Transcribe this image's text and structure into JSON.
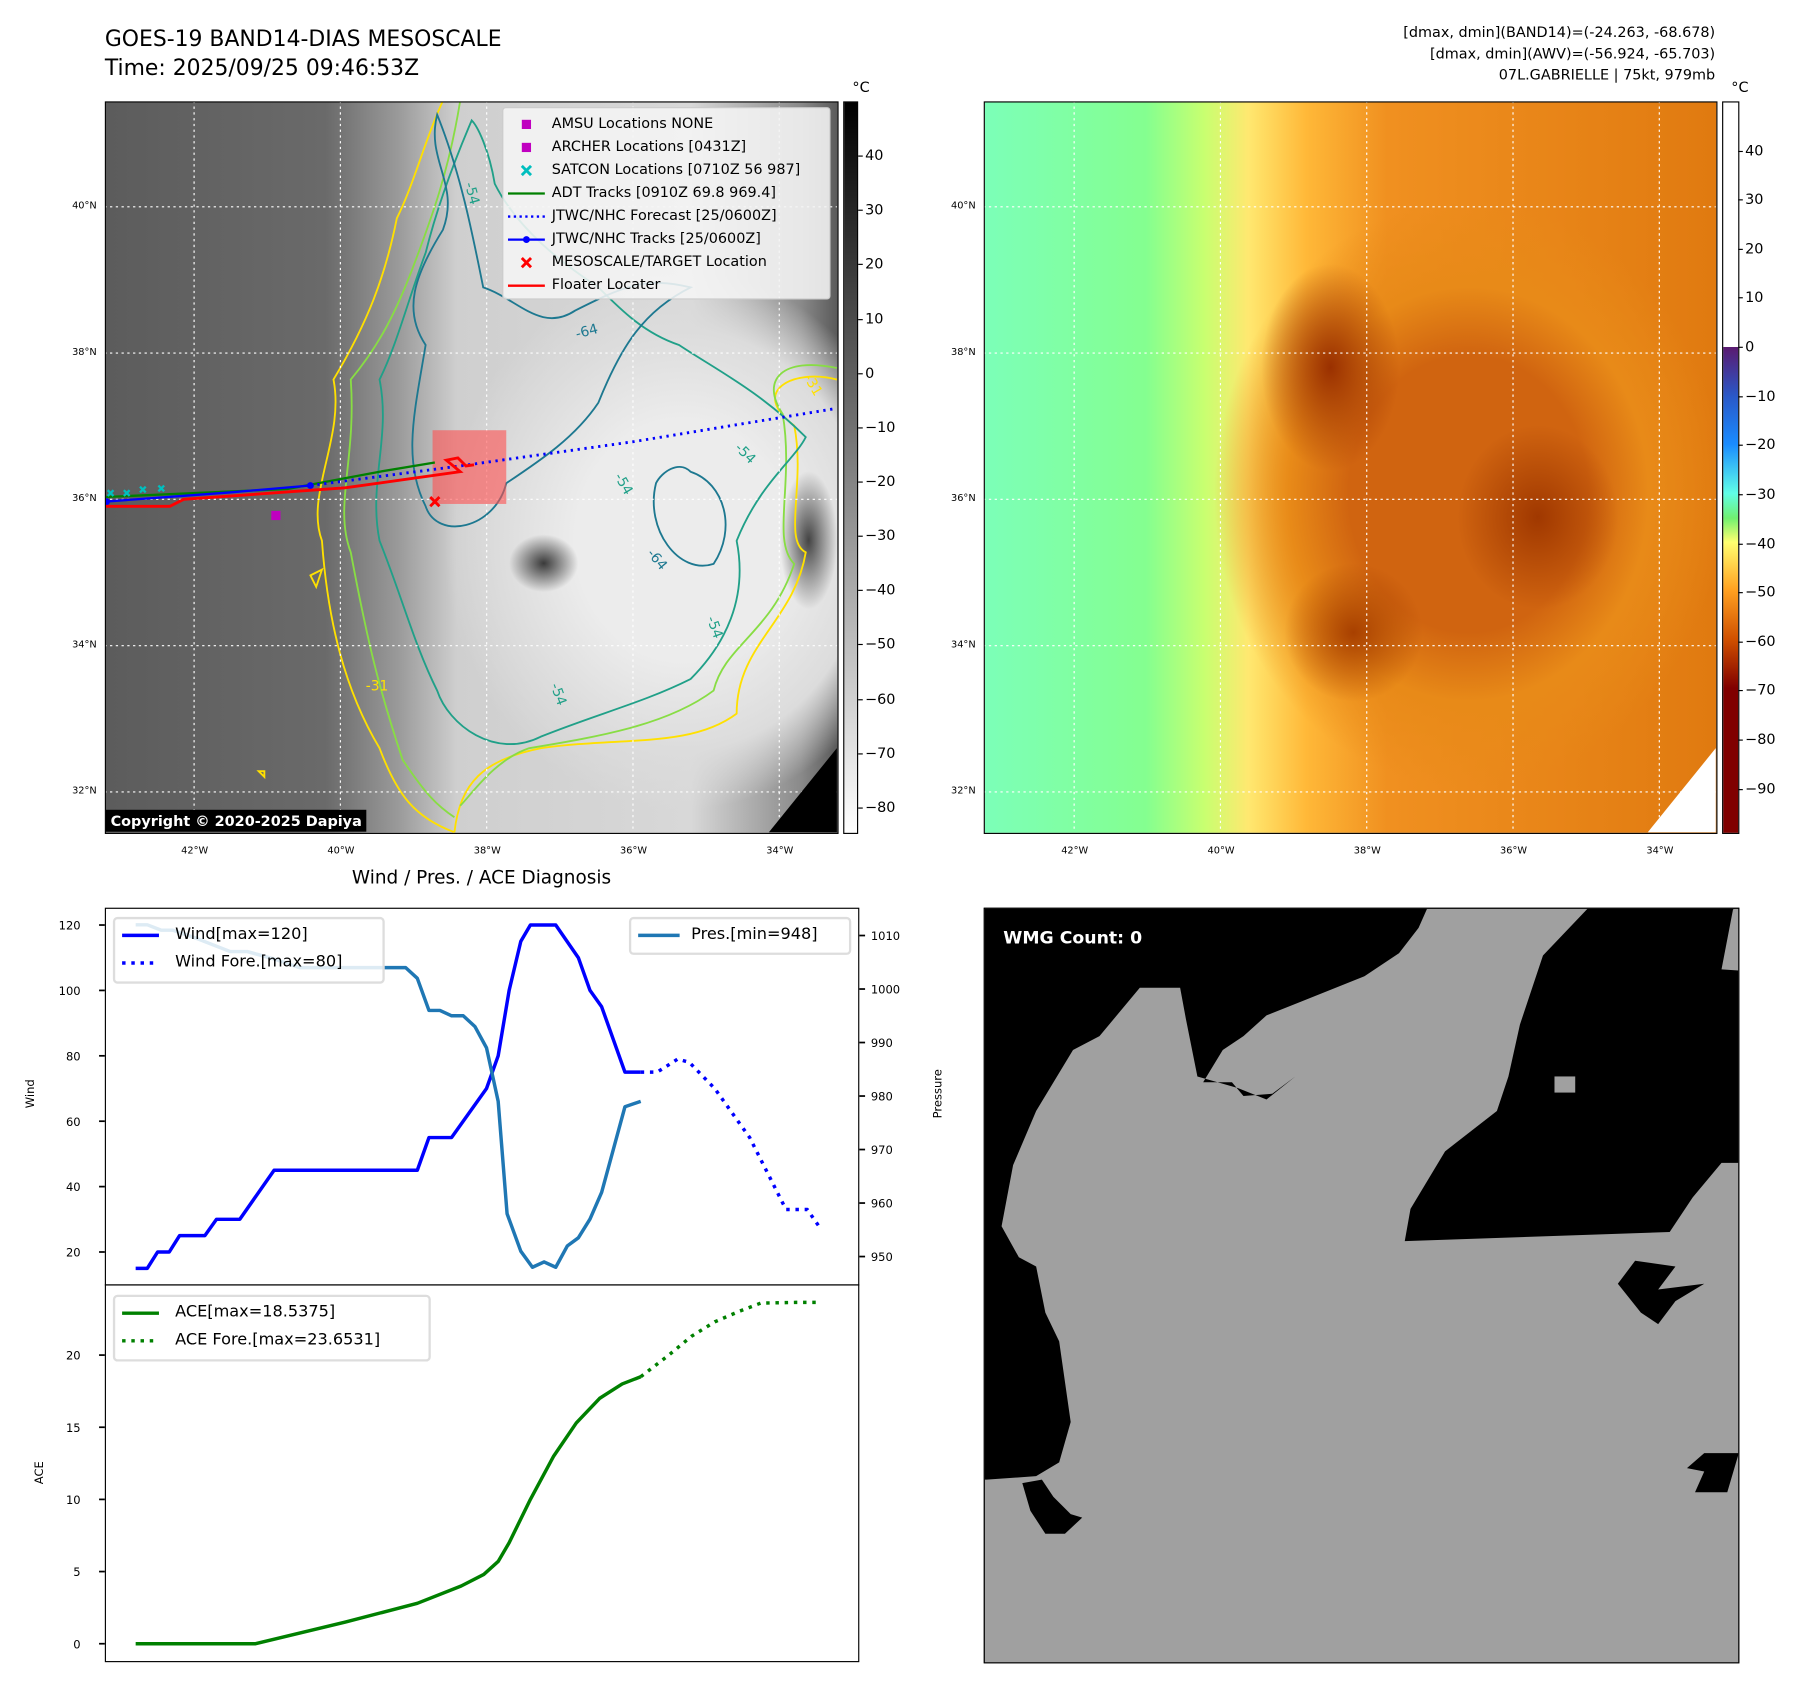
{
  "header": {
    "title": "GOES-19 BAND14-DIAS MESOSCALE",
    "time": "Time: 2025/09/25 09:46:53Z",
    "stats": [
      "[dmax, dmin](BAND14)=(-24.263, -68.678)",
      "[dmax, dmin](AWV)=(-56.924, -65.703)",
      "07L.GABRIELLE | 75kt, 979mb"
    ]
  },
  "map": {
    "lat_labels": [
      "40°N",
      "38°N",
      "36°N",
      "34°N",
      "32°N"
    ],
    "lat_values": [
      40,
      38,
      36,
      34,
      32
    ],
    "lon_labels": [
      "42°W",
      "40°W",
      "38°W",
      "36°W",
      "34°W"
    ],
    "lon_values": [
      -42,
      -40,
      -38,
      -36,
      -34
    ],
    "copyright": "Copyright © 2020-2025 Dapiya",
    "contour_labels": [
      "-64",
      "-54",
      "-54",
      "-54",
      "-64",
      "-54",
      "-54",
      "-31",
      "-31"
    ],
    "legend": [
      {
        "label": "AMSU Locations NONE",
        "marker": "square",
        "color": "#c000c0"
      },
      {
        "label": "ARCHER Locations [0431Z]",
        "marker": "square",
        "color": "#c000c0"
      },
      {
        "label": "SATCON Locations [0710Z 56 987]",
        "marker": "x",
        "color": "#00bfbf"
      },
      {
        "label": "ADT Tracks [0910Z 69.8 969.4]",
        "marker": "line",
        "color": "#008000"
      },
      {
        "label": "JTWC/NHC Forecast [25/0600Z]",
        "marker": "dotted",
        "color": "#0000ff"
      },
      {
        "label": "JTWC/NHC Tracks [25/0600Z]",
        "marker": "line-dot",
        "color": "#0000ff"
      },
      {
        "label": "MESOSCALE/TARGET Location",
        "marker": "x",
        "color": "#ff0000"
      },
      {
        "label": "Floater Locater",
        "marker": "line",
        "color": "#ff0000"
      }
    ]
  },
  "colorbar1": {
    "unit": "°C",
    "ticks": [
      "40",
      "30",
      "20",
      "10",
      "0",
      "−10",
      "−20",
      "−30",
      "−40",
      "−50",
      "−60",
      "−70",
      "−80"
    ],
    "values": [
      40,
      30,
      20,
      10,
      0,
      -10,
      -20,
      -30,
      -40,
      -50,
      -60,
      -70,
      -80
    ],
    "range": [
      -84.7,
      50
    ]
  },
  "colorbar2": {
    "unit": "°C",
    "ticks": [
      "40",
      "30",
      "20",
      "10",
      "0",
      "−10",
      "−20",
      "−30",
      "−40",
      "−50",
      "−60",
      "−70",
      "−80",
      "−90"
    ],
    "values": [
      40,
      30,
      20,
      10,
      0,
      -10,
      -20,
      -30,
      -40,
      -50,
      -60,
      -70,
      -80,
      -90
    ],
    "range": [
      -99,
      50
    ]
  },
  "chart_data": [
    {
      "type": "line",
      "title": "Wind / Pres. / ACE Diagnosis",
      "ylabel": "Wind",
      "y2label": "Pressure",
      "xlim": [
        -4.5,
        105.6
      ],
      "ylim": [
        10.1,
        125.3
      ],
      "y2lim": [
        944.8,
        1015.2
      ],
      "yticks": [
        20,
        40,
        60,
        80,
        100,
        120
      ],
      "y2ticks": [
        950,
        960,
        970,
        980,
        990,
        1000,
        1010
      ],
      "legend_left": [
        "Wind[max=120]",
        "Wind Fore.[max=80]"
      ],
      "legend_right": [
        "Pres.[min=948]"
      ],
      "series": [
        {
          "name": "Wind[max=120]",
          "axis": "left",
          "style": "solid",
          "color": "#0000ff",
          "x": [
            0,
            1.7,
            3.2,
            4.9,
            6.4,
            10.1,
            11.8,
            15.2,
            20.2,
            41.1,
            42.8,
            46.1,
            51.2,
            52.9,
            54.5,
            56.2,
            57.6,
            61.3,
            64.6,
            66.3,
            68,
            71.4,
            73.7
          ],
          "y": [
            15,
            15,
            20,
            20,
            25,
            25,
            30,
            30,
            45,
            45,
            55,
            55,
            70,
            80,
            100,
            115,
            120,
            120,
            110,
            100,
            95,
            75,
            75
          ]
        },
        {
          "name": "Wind Fore.[max=80]",
          "axis": "left",
          "style": "dotted",
          "color": "#0000ff",
          "x": [
            73.7,
            76.1,
            79.1,
            80.8,
            84.5,
            89.6,
            94.9,
            98,
            100
          ],
          "y": [
            75,
            75,
            79,
            78,
            70,
            55,
            33,
            33,
            27
          ]
        },
        {
          "name": "Pres.[min=948]",
          "axis": "right",
          "style": "solid",
          "color": "#1f77b4",
          "x": [
            0,
            1.7,
            3.7,
            5.4,
            8.8,
            13.8,
            16.3,
            20.5,
            23.9,
            39.4,
            41.1,
            42.8,
            44.4,
            46.1,
            47.8,
            49.5,
            51.2,
            52.9,
            54.2,
            56.2,
            57.9,
            59.6,
            61.3,
            63,
            64.6,
            66.3,
            68,
            69.7,
            71.4,
            73.7
          ],
          "y": [
            1012,
            1012,
            1011,
            1011,
            1009.5,
            1007,
            1007,
            1005.5,
            1004,
            1004,
            1002,
            996,
            996,
            995,
            995,
            993,
            989,
            979,
            958,
            951,
            948,
            949,
            948,
            952,
            953.5,
            957,
            962,
            970,
            978,
            979
          ]
        }
      ]
    },
    {
      "type": "line",
      "ylabel": "ACE",
      "xlim": [
        -4.5,
        105.6
      ],
      "ylim": [
        -1.2,
        24.9
      ],
      "yticks": [
        0,
        5,
        10,
        15,
        20
      ],
      "legend": [
        "ACE[max=18.5375]",
        "ACE Fore.[max=23.6531]"
      ],
      "series": [
        {
          "name": "ACE[max=18.5375]",
          "style": "solid",
          "color": "#008000",
          "x": [
            0,
            17.5,
            30.6,
            41.1,
            47.5,
            50.8,
            52.9,
            54.5,
            57.6,
            61,
            64.3,
            67.7,
            71,
            73.7
          ],
          "y": [
            0,
            0,
            1.5,
            2.8,
            4,
            4.8,
            5.7,
            7,
            10,
            13,
            15.3,
            17,
            18,
            18.5
          ]
        },
        {
          "name": "ACE Fore.[max=23.6531]",
          "style": "dotted",
          "color": "#008000",
          "x": [
            73.7,
            77.8,
            81.1,
            84.5,
            87.9,
            91.2,
            96.3,
            100
          ],
          "y": [
            18.5,
            20,
            21.3,
            22.3,
            23,
            23.6,
            23.65,
            23.65
          ]
        }
      ]
    }
  ],
  "wmg": {
    "label": "WMG Count: 0"
  }
}
